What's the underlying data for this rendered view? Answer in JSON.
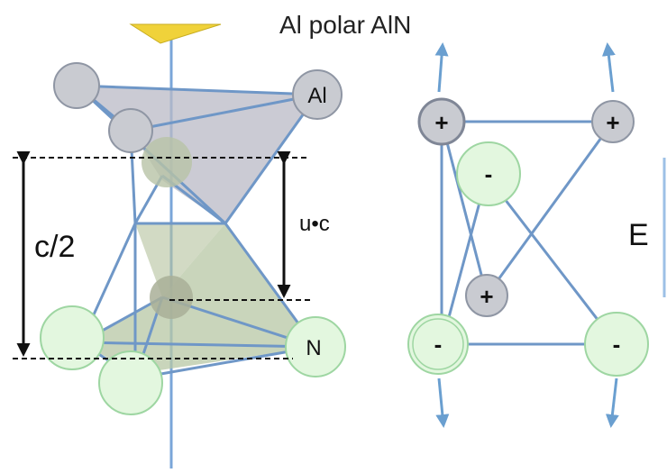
{
  "title": "Al polar AlN",
  "labels": {
    "al_atom": "Al",
    "n_atom": "N",
    "c_half": "c/2",
    "uc": "u•c",
    "field": "E"
  },
  "charges": {
    "plus": "+",
    "minus": "-"
  },
  "colors": {
    "al_fill": "#c9cbd1",
    "al_stroke": "#8f96a4",
    "n_fill": "#e3f7df",
    "n_stroke": "#9ed6a2",
    "bond": "#6f97c7",
    "arrow": "#6a9fd0",
    "axis": "#7aa6d9",
    "top_tetra": "#b9b9c6",
    "bottom_tetra": "#b7c7a4",
    "marker": "#f0d23a"
  }
}
